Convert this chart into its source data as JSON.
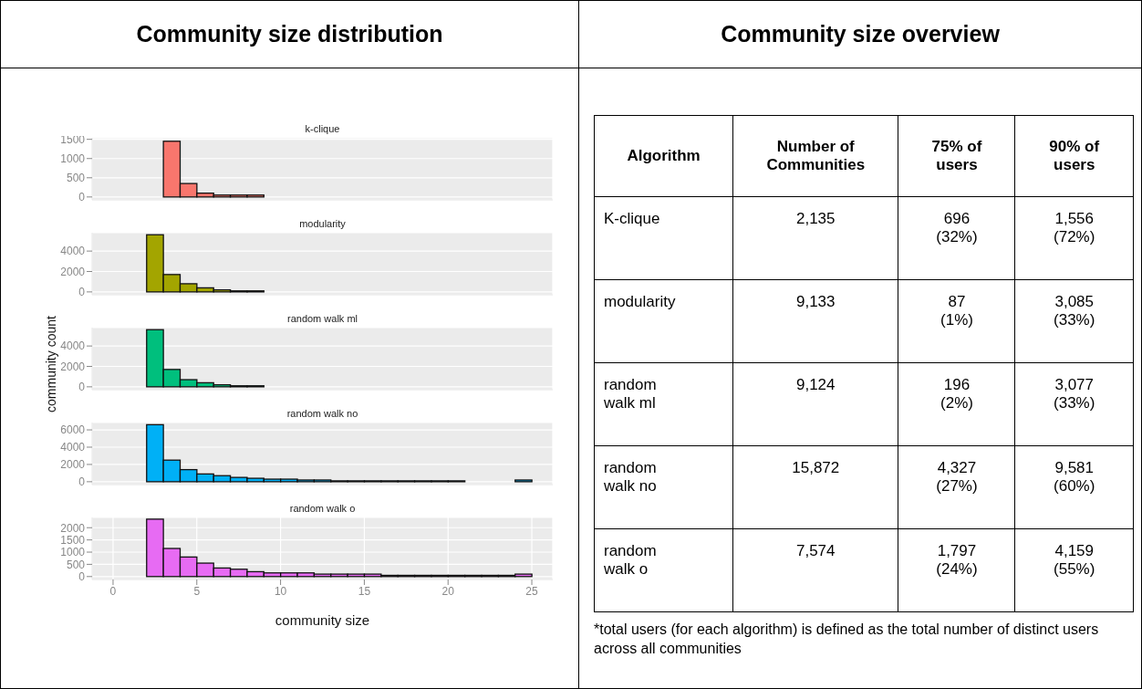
{
  "chart_data": [
    {
      "type": "histogram",
      "title": "k-clique",
      "annotations": [
        "Community size distribution"
      ],
      "bins": [
        0,
        1,
        2,
        3,
        4,
        5,
        6,
        7,
        8,
        9,
        10,
        11,
        12,
        13,
        14,
        15,
        16,
        17,
        18,
        19,
        20,
        21,
        22,
        23,
        24,
        25
      ],
      "values": [
        0,
        0,
        0,
        1450,
        350,
        100,
        50,
        50,
        50,
        0,
        0,
        0,
        0,
        0,
        0,
        0,
        0,
        0,
        0,
        0,
        0,
        0,
        0,
        0,
        0
      ],
      "color": "#f8766d",
      "xlim": [
        -1.25,
        26.25
      ],
      "xticks": [
        0,
        5,
        10,
        15,
        20,
        25
      ],
      "ylim": [
        -75,
        1540
      ],
      "yticks": [
        0,
        500,
        1000,
        1500
      ],
      "grid": true,
      "tick_labels": "y"
    },
    {
      "type": "histogram",
      "title": "modularity",
      "bins": [
        0,
        1,
        2,
        3,
        4,
        5,
        6,
        7,
        8,
        9,
        10,
        11,
        12,
        13,
        14,
        15,
        16,
        17,
        18,
        19,
        20,
        21,
        22,
        23,
        24,
        25
      ],
      "values": [
        0,
        0,
        5600,
        1700,
        800,
        400,
        200,
        100,
        100,
        0,
        0,
        0,
        0,
        0,
        0,
        0,
        0,
        0,
        0,
        0,
        0,
        0,
        0,
        0,
        0
      ],
      "color": "#a3a500",
      "xlim": [
        -1.25,
        26.25
      ],
      "xticks": [
        0,
        5,
        10,
        15,
        20,
        25
      ],
      "ylim": [
        -280,
        5800
      ],
      "yticks": [
        0,
        2000,
        4000
      ],
      "grid": true,
      "tick_labels": "y"
    },
    {
      "type": "histogram",
      "title": "random walk ml",
      "ylabel": "community count",
      "bins": [
        0,
        1,
        2,
        3,
        4,
        5,
        6,
        7,
        8,
        9,
        10,
        11,
        12,
        13,
        14,
        15,
        16,
        17,
        18,
        19,
        20,
        21,
        22,
        23,
        24,
        25
      ],
      "values": [
        0,
        0,
        5600,
        1700,
        700,
        400,
        200,
        100,
        100,
        0,
        0,
        0,
        0,
        0,
        0,
        0,
        0,
        0,
        0,
        0,
        0,
        0,
        0,
        0,
        0
      ],
      "color": "#00bf7d",
      "xlim": [
        -1.25,
        26.25
      ],
      "xticks": [
        0,
        5,
        10,
        15,
        20,
        25
      ],
      "ylim": [
        -280,
        5800
      ],
      "yticks": [
        0,
        2000,
        4000
      ],
      "grid": true,
      "tick_labels": "y"
    },
    {
      "type": "histogram",
      "title": "random walk no",
      "bins": [
        0,
        1,
        2,
        3,
        4,
        5,
        6,
        7,
        8,
        9,
        10,
        11,
        12,
        13,
        14,
        15,
        16,
        17,
        18,
        19,
        20,
        21,
        22,
        23,
        24,
        25
      ],
      "values": [
        0,
        0,
        6600,
        2500,
        1400,
        900,
        700,
        500,
        400,
        300,
        300,
        200,
        200,
        100,
        100,
        100,
        100,
        100,
        100,
        100,
        100,
        0,
        0,
        0,
        200
      ],
      "color": "#00b0f6",
      "xlim": [
        -1.25,
        26.25
      ],
      "xticks": [
        0,
        5,
        10,
        15,
        20,
        25
      ],
      "ylim": [
        -330,
        6850
      ],
      "yticks": [
        0,
        2000,
        4000,
        6000
      ],
      "grid": true,
      "tick_labels": "y"
    },
    {
      "type": "histogram",
      "title": "random walk o",
      "xlabel": "community size",
      "bins": [
        0,
        1,
        2,
        3,
        4,
        5,
        6,
        7,
        8,
        9,
        10,
        11,
        12,
        13,
        14,
        15,
        16,
        17,
        18,
        19,
        20,
        21,
        22,
        23,
        24,
        25
      ],
      "values": [
        0,
        0,
        2350,
        1150,
        800,
        550,
        350,
        300,
        200,
        150,
        150,
        150,
        100,
        100,
        100,
        100,
        50,
        50,
        50,
        50,
        50,
        50,
        50,
        50,
        100
      ],
      "color": "#e76bf3",
      "xlim": [
        -1.25,
        26.25
      ],
      "xticks": [
        0,
        5,
        10,
        15,
        20,
        25
      ],
      "ylim": [
        -120,
        2420
      ],
      "yticks": [
        0,
        500,
        1000,
        1500,
        2000
      ],
      "grid": true
    },
    {
      "type": "other",
      "title": "Community size overview",
      "xlabel": "Algorithm",
      "categories": [
        "K-clique",
        "modularity",
        "random walk ml",
        "random walk no",
        "random walk o"
      ],
      "series": [
        {
          "name": "Number of Communities",
          "values": [
            null,
            null,
            null,
            null,
            null
          ],
          "value_labels": [
            "2,135",
            "9,133",
            "9,124",
            "15,872",
            "7,574"
          ]
        },
        {
          "name": "75% of users",
          "values": [
            null,
            null,
            null,
            null,
            null
          ],
          "value_labels": [
            "696 (32%)",
            "87 (1%)",
            "196 (2%)",
            "4,327 (27%)",
            "1,797 (24%)"
          ]
        },
        {
          "name": "90% of users",
          "values": [
            null,
            null,
            null,
            null,
            null
          ],
          "value_labels": [
            "1,556 (72%)",
            "3,085 (33%)",
            "3,077 (33%)",
            "9,581 (60%)",
            "4,159 (55%)"
          ]
        }
      ],
      "annotations": [
        "*total users (for each algorithm) is defined as the total number of distinct users across all communities"
      ]
    }
  ]
}
